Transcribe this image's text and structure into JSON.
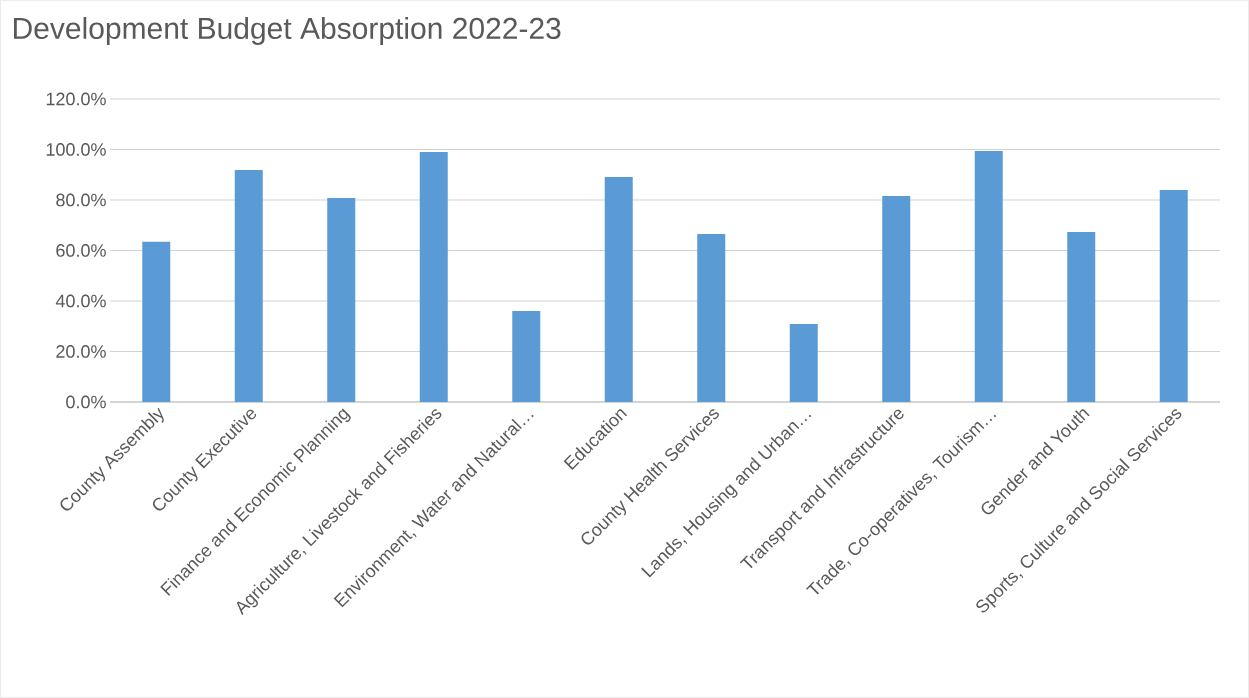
{
  "chart_data": {
    "type": "bar",
    "title": "Development Budget Absorption 2022-23",
    "categories": [
      "County Assembly",
      "County Executive",
      "Finance and Economic Planning",
      "Agriculture, Livestock and Fisheries",
      "Environment, Water and Natural…",
      "Education",
      "County Health Services",
      "Lands, Housing and Urban…",
      "Transport and Infrastructure",
      "Trade, Co-operatives, Tourism…",
      "Gender and Youth",
      "Sports, Culture and Social Services"
    ],
    "values": [
      63.5,
      91.9,
      80.8,
      99.0,
      36.0,
      89.1,
      66.5,
      30.9,
      81.6,
      99.4,
      67.3,
      84.0
    ],
    "color": "#5b9bd5",
    "ylim": [
      0,
      120
    ],
    "yticks": [
      {
        "value": 0,
        "label": "0.0%"
      },
      {
        "value": 20,
        "label": "20.0%"
      },
      {
        "value": 40,
        "label": "40.0%"
      },
      {
        "value": 60,
        "label": "60.0%"
      },
      {
        "value": 80,
        "label": "80.0%"
      },
      {
        "value": 100,
        "label": "100.0%"
      },
      {
        "value": 120,
        "label": "120.0%"
      }
    ],
    "grid": "y"
  }
}
